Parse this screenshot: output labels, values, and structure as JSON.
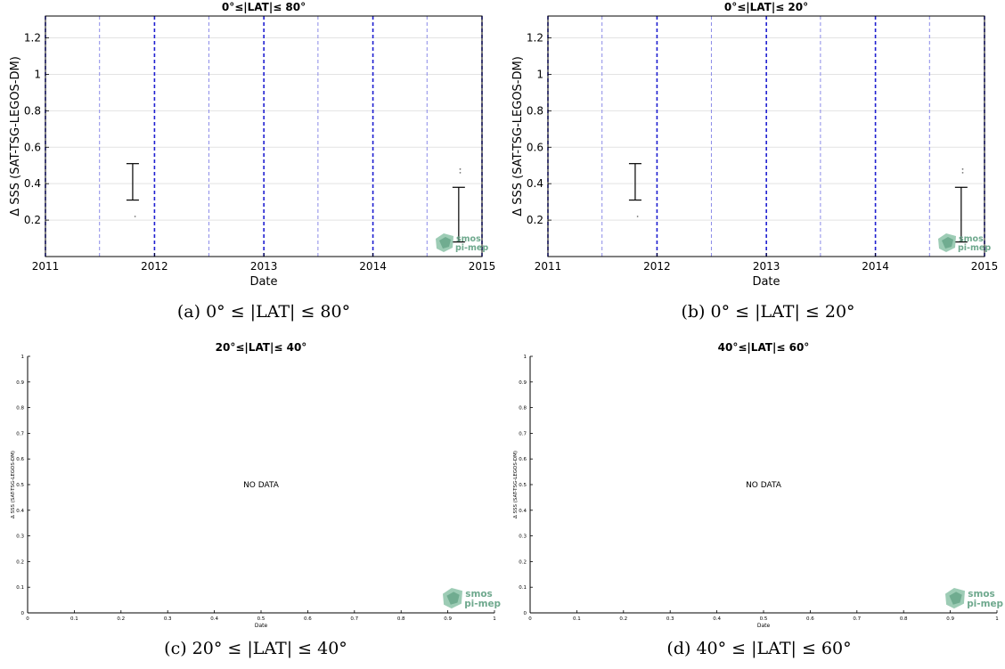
{
  "colors": {
    "year_line": "#1f1fd1",
    "half_year_line": "#8a8ae8",
    "error_bar": "#000000",
    "logo": "#6fa98e"
  },
  "logo": {
    "line1": "smos",
    "line2": "pi-mep"
  },
  "panels": [
    {
      "caption": "(a) 0° ≤ |LAT| ≤ 80°"
    },
    {
      "caption": "(b) 0° ≤ |LAT| ≤ 20°"
    },
    {
      "caption": "(c) 20° ≤ |LAT| ≤ 40°"
    },
    {
      "caption": "(d) 40° ≤ |LAT| ≤ 60°"
    }
  ],
  "chart_data": [
    {
      "type": "errorbar",
      "title": "0°≤|LAT|≤ 80°",
      "xlabel": "Date",
      "ylabel": "Δ SSS (SAT-TSG-LEGOS-DM)",
      "xlim": [
        "2011-01-01",
        "2015-01-01"
      ],
      "ylim": [
        0,
        1.32
      ],
      "xticks": [
        "2011",
        "2012",
        "2013",
        "2014",
        "2015"
      ],
      "yticks": [
        "0.2",
        "0.4",
        "0.6",
        "0.8",
        "1",
        "1.2"
      ],
      "grid": true,
      "vertical_lines": {
        "year": [
          "2011-01-01",
          "2012-01-01",
          "2013-01-01",
          "2014-01-01",
          "2015-01-01"
        ],
        "mid_year": [
          "2011-07-01",
          "2012-07-01",
          "2013-07-01",
          "2014-07-01"
        ]
      },
      "error_bars": [
        {
          "date": "2011-10-20",
          "low": 0.31,
          "high": 0.51
        },
        {
          "date": "2014-10-15",
          "low": 0.08,
          "high": 0.38
        }
      ],
      "points": [
        {
          "date": "2011-10-28",
          "value": 0.22
        },
        {
          "date": "2014-10-20",
          "value": 0.48
        },
        {
          "date": "2014-10-20",
          "value": 0.46
        }
      ]
    },
    {
      "type": "errorbar",
      "title": "0°≤|LAT|≤ 20°",
      "xlabel": "Date",
      "ylabel": "Δ SSS (SAT-TSG-LEGOS-DM)",
      "xlim": [
        "2011-01-01",
        "2015-01-01"
      ],
      "ylim": [
        0,
        1.32
      ],
      "xticks": [
        "2011",
        "2012",
        "2013",
        "2014",
        "2015"
      ],
      "yticks": [
        "0.2",
        "0.4",
        "0.6",
        "0.8",
        "1",
        "1.2"
      ],
      "grid": true,
      "vertical_lines": {
        "year": [
          "2011-01-01",
          "2012-01-01",
          "2013-01-01",
          "2014-01-01",
          "2015-01-01"
        ],
        "mid_year": [
          "2011-07-01",
          "2012-07-01",
          "2013-07-01",
          "2014-07-01"
        ]
      },
      "error_bars": [
        {
          "date": "2011-10-20",
          "low": 0.31,
          "high": 0.51
        },
        {
          "date": "2014-10-15",
          "low": 0.08,
          "high": 0.38
        }
      ],
      "points": [
        {
          "date": "2011-10-28",
          "value": 0.22
        },
        {
          "date": "2014-10-20",
          "value": 0.48
        },
        {
          "date": "2014-10-20",
          "value": 0.46
        }
      ]
    },
    {
      "type": "empty",
      "title": "20°≤|LAT|≤ 40°",
      "xlabel": "Date",
      "ylabel": "Δ SSS (SAT-TSG-LEGOS-DM)",
      "annotation": "NO DATA",
      "xlim": [
        0,
        1
      ],
      "ylim": [
        0,
        1
      ],
      "xticks": [
        "0",
        "0.1",
        "0.2",
        "0.3",
        "0.4",
        "0.5",
        "0.6",
        "0.7",
        "0.8",
        "0.9",
        "1"
      ],
      "yticks": [
        "0",
        "0.1",
        "0.2",
        "0.3",
        "0.4",
        "0.5",
        "0.6",
        "0.7",
        "0.8",
        "0.9",
        "1"
      ],
      "grid": false
    },
    {
      "type": "empty",
      "title": "40°≤|LAT|≤ 60°",
      "xlabel": "Date",
      "ylabel": "Δ SSS (SAT-TSG-LEGOS-DM)",
      "annotation": "NO DATA",
      "xlim": [
        0,
        1
      ],
      "ylim": [
        0,
        1
      ],
      "xticks": [
        "0",
        "0.1",
        "0.2",
        "0.3",
        "0.4",
        "0.5",
        "0.6",
        "0.7",
        "0.8",
        "0.9",
        "1"
      ],
      "yticks": [
        "0",
        "0.1",
        "0.2",
        "0.3",
        "0.4",
        "0.5",
        "0.6",
        "0.7",
        "0.8",
        "0.9",
        "1"
      ],
      "grid": false
    }
  ]
}
